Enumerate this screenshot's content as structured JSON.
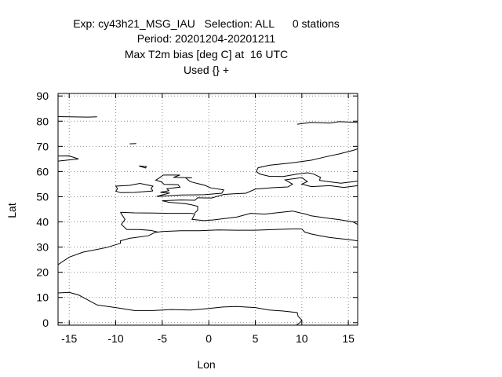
{
  "title": {
    "lines": [
      "Exp: cy43h21_MSG_IAU   Selection: ALL      0 stations",
      "Period: 20201204-20201211",
      "Max T2m bias [deg C] at  16 UTC",
      "Used {} +"
    ]
  },
  "chart_data": {
    "type": "map",
    "title": "Max T2m bias [deg C] at  16 UTC",
    "xlabel": "Lon",
    "ylabel": "Lat",
    "xlim": [
      -16.2,
      16
    ],
    "ylim": [
      -1,
      91
    ],
    "xticks": [
      -15,
      -10,
      -5,
      0,
      5,
      10,
      15
    ],
    "yticks": [
      0,
      10,
      20,
      30,
      40,
      50,
      60,
      70,
      80,
      90
    ],
    "grid": true,
    "stations": 0,
    "coastlines": [
      [
        [
          -16.2,
          23
        ],
        [
          -15,
          26
        ],
        [
          -13.5,
          28
        ],
        [
          -11,
          29.8
        ],
        [
          -9.5,
          31.5
        ],
        [
          -9.5,
          32.5
        ],
        [
          -8.5,
          33.5
        ],
        [
          -6.5,
          34.5
        ],
        [
          -5.8,
          35.8
        ],
        [
          -5,
          36.2
        ],
        [
          -3,
          36.5
        ],
        [
          -1,
          36.5
        ],
        [
          1,
          36.8
        ],
        [
          3,
          36.7
        ],
        [
          5,
          36.7
        ],
        [
          7,
          37
        ],
        [
          9,
          37.2
        ],
        [
          10,
          37.2
        ],
        [
          10.3,
          36
        ],
        [
          11,
          35.2
        ],
        [
          12,
          34.5
        ],
        [
          13,
          33.8
        ],
        [
          15,
          33
        ],
        [
          16,
          32.5
        ]
      ],
      [
        [
          -16.2,
          11.8
        ],
        [
          -15,
          12
        ],
        [
          -14,
          11
        ],
        [
          -13.5,
          10
        ],
        [
          -13,
          9
        ],
        [
          -12,
          7
        ],
        [
          -10,
          6
        ],
        [
          -8,
          4.8
        ],
        [
          -6,
          4.8
        ],
        [
          -4,
          5.2
        ],
        [
          -2,
          5
        ],
        [
          0,
          5.6
        ],
        [
          1.5,
          6.2
        ],
        [
          3,
          6.4
        ],
        [
          5,
          6
        ],
        [
          6.5,
          5
        ],
        [
          8,
          4.6
        ],
        [
          9.5,
          4
        ],
        [
          9.6,
          2.5
        ],
        [
          10,
          1
        ],
        [
          9.8,
          0
        ],
        [
          9.4,
          -1
        ]
      ],
      [
        [
          -9.5,
          43.8
        ],
        [
          -8,
          43.6
        ],
        [
          -6,
          43.5
        ],
        [
          -4,
          43.4
        ],
        [
          -2,
          43.4
        ],
        [
          -1.5,
          43.2
        ],
        [
          -1.8,
          41
        ],
        [
          -0.5,
          40.5
        ],
        [
          0.5,
          40.8
        ],
        [
          3,
          41.9
        ],
        [
          4.5,
          43.4
        ],
        [
          6,
          43.1
        ],
        [
          8,
          43.9
        ],
        [
          9,
          44.3
        ],
        [
          10.5,
          43
        ],
        [
          11,
          42.4
        ],
        [
          12.5,
          41.6
        ],
        [
          14,
          40.9
        ],
        [
          15.5,
          40
        ],
        [
          16,
          39
        ]
      ],
      [
        [
          -9.5,
          43.8
        ],
        [
          -9,
          41
        ],
        [
          -9.4,
          39
        ],
        [
          -8.8,
          37
        ],
        [
          -7.5,
          37
        ],
        [
          -6.2,
          36.6
        ],
        [
          -5.5,
          36
        ]
      ],
      [
        [
          -5,
          48.4
        ],
        [
          -3,
          48.7
        ],
        [
          -1.5,
          48.6
        ],
        [
          -1.2,
          49.6
        ],
        [
          0.3,
          49.5
        ],
        [
          1.6,
          50.9
        ],
        [
          2.5,
          51.1
        ],
        [
          4,
          51.4
        ],
        [
          5,
          53
        ],
        [
          7,
          53.6
        ],
        [
          8.5,
          53.9
        ],
        [
          9,
          55
        ],
        [
          8.2,
          56.7
        ],
        [
          10,
          57.6
        ],
        [
          10.6,
          56
        ],
        [
          10,
          55
        ],
        [
          11,
          54
        ],
        [
          13,
          54.4
        ],
        [
          14.5,
          53.7
        ],
        [
          16,
          54.4
        ]
      ],
      [
        [
          -5,
          48.4
        ],
        [
          -4.3,
          47.8
        ],
        [
          -2.5,
          47.2
        ],
        [
          -2,
          46.9
        ],
        [
          -1.2,
          46.2
        ],
        [
          -1.2,
          44.6
        ],
        [
          -1.5,
          43.6
        ]
      ],
      [
        [
          -5.6,
          50.1
        ],
        [
          -3,
          50.7
        ],
        [
          -0.5,
          50.8
        ],
        [
          1.4,
          51.4
        ],
        [
          1.6,
          52.7
        ],
        [
          0.2,
          53.5
        ],
        [
          -0.4,
          54.5
        ],
        [
          -1.5,
          55.5
        ],
        [
          -2,
          56
        ],
        [
          -2.5,
          57.5
        ],
        [
          -1.8,
          57.5
        ],
        [
          -3.8,
          57.7
        ],
        [
          -3.1,
          58.6
        ],
        [
          -4.9,
          58.6
        ],
        [
          -5.3,
          57.5
        ],
        [
          -5.7,
          56.6
        ],
        [
          -5.1,
          55.9
        ],
        [
          -4.8,
          54.9
        ],
        [
          -3.3,
          54.8
        ],
        [
          -3.1,
          53.8
        ],
        [
          -4.5,
          53.2
        ],
        [
          -4.3,
          52.4
        ],
        [
          -5.2,
          51.7
        ],
        [
          -4.2,
          51.5
        ],
        [
          -5.6,
          50.1
        ]
      ],
      [
        [
          -6,
          52.3
        ],
        [
          -6.2,
          53.3
        ],
        [
          -6,
          54.2
        ],
        [
          -7.4,
          55.3
        ],
        [
          -8.5,
          54.5
        ],
        [
          -10,
          54.2
        ],
        [
          -9.8,
          53.2
        ],
        [
          -10,
          52.2
        ],
        [
          -9.5,
          51.6
        ],
        [
          -8,
          51.7
        ],
        [
          -6,
          52.3
        ]
      ],
      [
        [
          5.1,
          60
        ],
        [
          5.3,
          61.5
        ],
        [
          6.5,
          62.5
        ],
        [
          9,
          63.5
        ],
        [
          11,
          64.5
        ],
        [
          12.5,
          65.8
        ],
        [
          14,
          67
        ],
        [
          15.5,
          68.4
        ],
        [
          16,
          69
        ]
      ],
      [
        [
          5.1,
          60
        ],
        [
          5.5,
          59
        ],
        [
          6.5,
          58.1
        ],
        [
          8,
          58
        ],
        [
          9.5,
          59
        ],
        [
          10.6,
          59.5
        ],
        [
          11.2,
          59.1
        ],
        [
          12,
          57.7
        ],
        [
          11.9,
          56.5
        ],
        [
          12.6,
          56.1
        ],
        [
          14.2,
          55.4
        ],
        [
          16,
          56.2
        ]
      ],
      [
        [
          -24.5,
          65.5
        ],
        [
          -22,
          64
        ],
        [
          -19,
          63.4
        ],
        [
          -16,
          64.2
        ],
        [
          -14,
          65
        ],
        [
          -15,
          66.2
        ],
        [
          -17,
          66.1
        ],
        [
          -16.2,
          65.8
        ]
      ],
      [
        [
          -16.2,
          81.8
        ],
        [
          -13,
          81.6
        ],
        [
          -12,
          81.7
        ]
      ],
      [
        [
          9.5,
          78.8
        ],
        [
          11,
          79.5
        ],
        [
          13,
          79.2
        ],
        [
          14,
          79.8
        ],
        [
          16,
          79.5
        ]
      ],
      [
        [
          -7.5,
          62.2
        ],
        [
          -6.7,
          62
        ],
        [
          -6.8,
          61.4
        ],
        [
          -7.5,
          62.2
        ]
      ],
      [
        [
          -8.5,
          71
        ],
        [
          -7.8,
          71.1
        ]
      ]
    ]
  }
}
